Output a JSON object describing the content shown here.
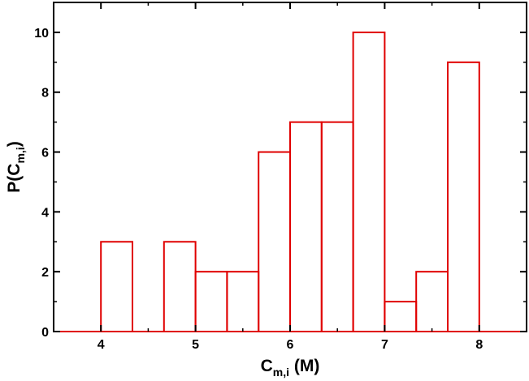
{
  "chart_data": {
    "type": "histogram",
    "xlabel": {
      "main": "C",
      "sub": "m,i",
      "unit": " (M)"
    },
    "ylabel": {
      "prefix": "P(C",
      "sub": "m,i",
      "suffix": ")"
    },
    "xlim": [
      3.5,
      8.5
    ],
    "ylim": [
      0,
      11
    ],
    "xticks": [
      4,
      5,
      6,
      7,
      8
    ],
    "yticks": [
      0,
      2,
      4,
      6,
      8,
      10
    ],
    "bin_width": 0.3333,
    "bins": [
      {
        "x0": 4.0,
        "x1": 4.3333,
        "value": 3
      },
      {
        "x0": 4.3333,
        "x1": 4.6667,
        "value": 0
      },
      {
        "x0": 4.6667,
        "x1": 5.0,
        "value": 3
      },
      {
        "x0": 5.0,
        "x1": 5.3333,
        "value": 2
      },
      {
        "x0": 5.3333,
        "x1": 5.6667,
        "value": 2
      },
      {
        "x0": 5.6667,
        "x1": 6.0,
        "value": 6
      },
      {
        "x0": 6.0,
        "x1": 6.3333,
        "value": 7
      },
      {
        "x0": 6.3333,
        "x1": 6.6667,
        "value": 7
      },
      {
        "x0": 6.6667,
        "x1": 7.0,
        "value": 10
      },
      {
        "x0": 7.0,
        "x1": 7.3333,
        "value": 1
      },
      {
        "x0": 7.3333,
        "x1": 7.6667,
        "value": 2
      },
      {
        "x0": 7.6667,
        "x1": 8.0,
        "value": 9
      }
    ],
    "series_color": "#e00000",
    "grid": false,
    "legend": "none"
  }
}
